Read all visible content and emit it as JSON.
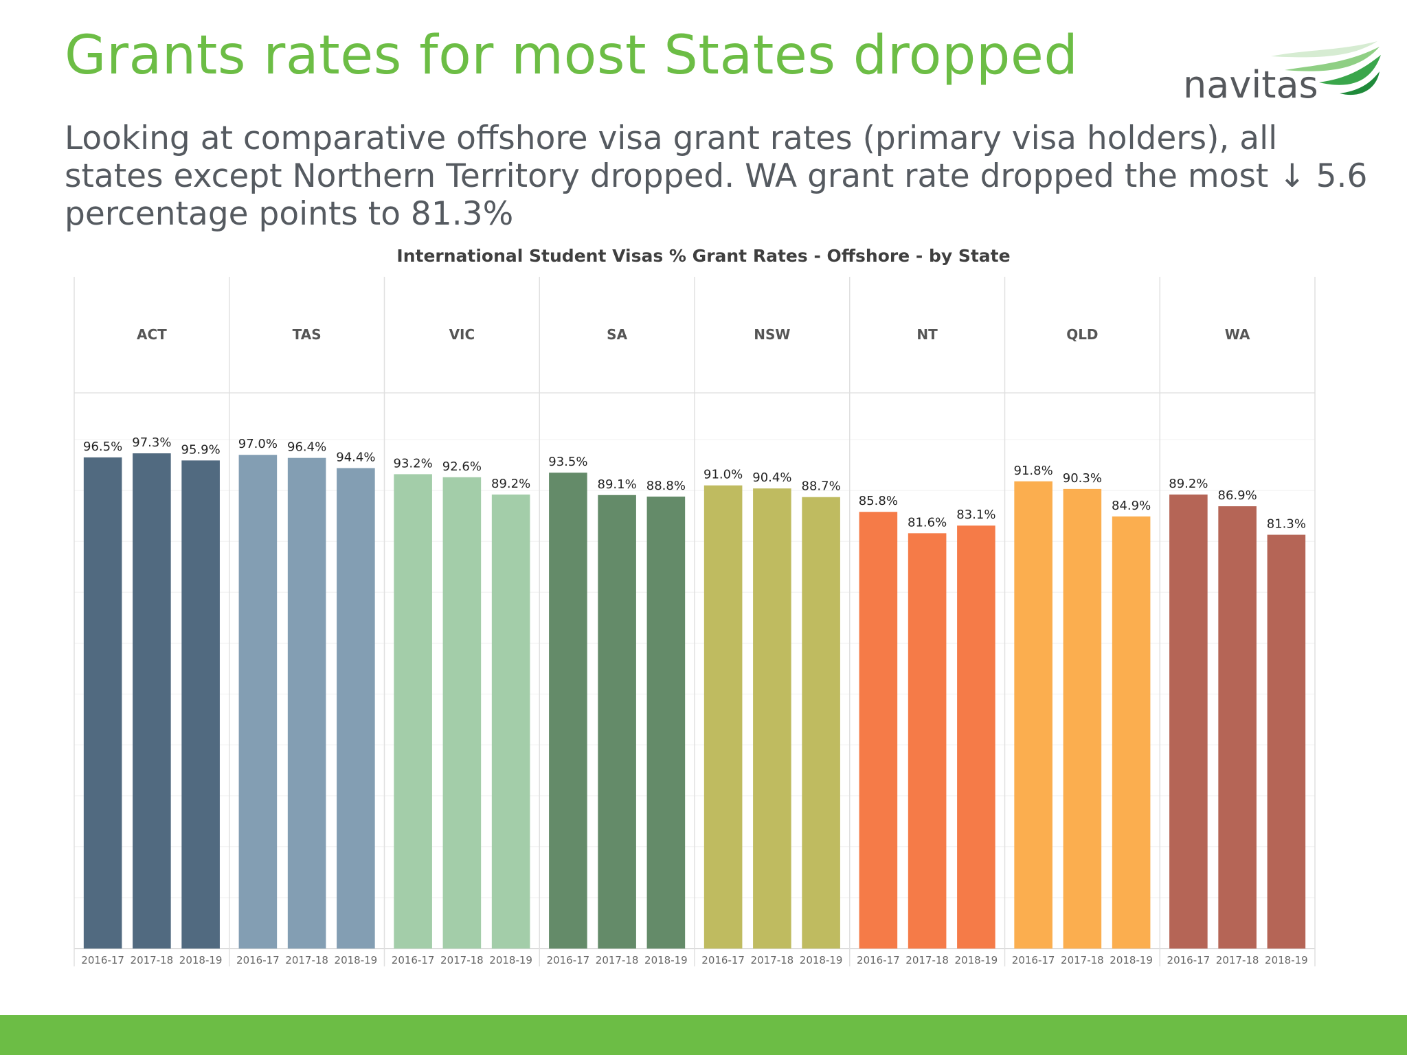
{
  "slide": {
    "title": "Grants rates for most States dropped",
    "subtitle": "Looking at comparative offshore visa grant rates (primary visa holders), all states except Northern Territory dropped. WA grant rate dropped the most ↓ 5.6 percentage points to 81.3%",
    "logo_text": "navitas"
  },
  "colors": {
    "title": "#6cbd45",
    "text": "#555a60",
    "footer": "#6cbd45",
    "logo_text": "#55585c",
    "logo_swoosh": "#3aa64b"
  },
  "chart_data": {
    "type": "bar",
    "title": "International Student Visas % Grant Rates - Offshore - by State",
    "xlabel": "",
    "ylabel": "",
    "ylim": [
      0,
      100
    ],
    "grid": true,
    "legend": "none",
    "value_suffix": "%",
    "years": [
      "2016-17",
      "2017-18",
      "2018-19"
    ],
    "panels": [
      {
        "state": "ACT",
        "color": "#516a80",
        "values": [
          96.5,
          97.3,
          95.9
        ]
      },
      {
        "state": "TAS",
        "color": "#839eb3",
        "values": [
          97.0,
          96.4,
          94.4
        ]
      },
      {
        "state": "VIC",
        "color": "#a3cda9",
        "values": [
          93.2,
          92.6,
          89.2
        ]
      },
      {
        "state": "SA",
        "color": "#648b69",
        "values": [
          93.5,
          89.1,
          88.8
        ]
      },
      {
        "state": "NSW",
        "color": "#bfbb60",
        "values": [
          91.0,
          90.4,
          88.7
        ]
      },
      {
        "state": "NT",
        "color": "#f57b48",
        "values": [
          85.8,
          81.6,
          83.1
        ]
      },
      {
        "state": "QLD",
        "color": "#fbae4f",
        "values": [
          91.8,
          90.3,
          84.9
        ]
      },
      {
        "state": "WA",
        "color": "#b56556",
        "values": [
          89.2,
          86.9,
          81.3
        ]
      }
    ]
  }
}
